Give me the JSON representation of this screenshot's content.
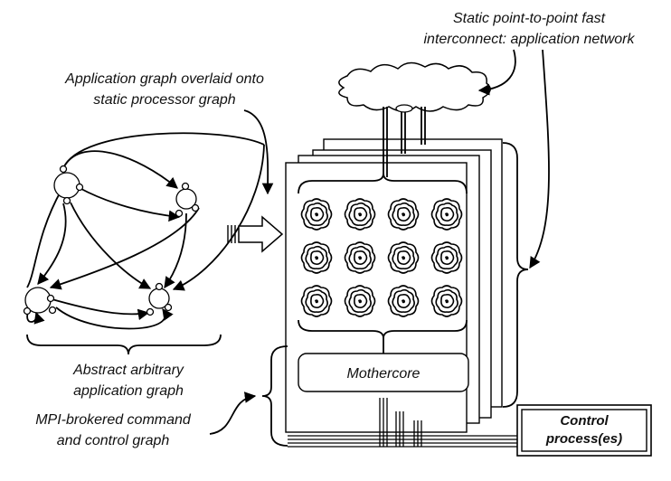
{
  "labels": {
    "top_right": [
      "Static point-to-point fast",
      "interconnect: application network"
    ],
    "top_left": [
      "Application graph overlaid onto",
      "static processor graph"
    ],
    "bottom_left_1": [
      "Abstract arbitrary",
      "application graph"
    ],
    "bottom_left_2": [
      "MPI-brokered command",
      "and control graph"
    ],
    "mothercore": "Mothercore",
    "control": [
      "Control",
      "process(es)"
    ]
  },
  "icons": {
    "cloud": "cloud-icon",
    "chip": "processor-core-icon",
    "arrow": "block-arrow-icon"
  },
  "colors": {
    "line": "#000000",
    "background": "#ffffff"
  }
}
